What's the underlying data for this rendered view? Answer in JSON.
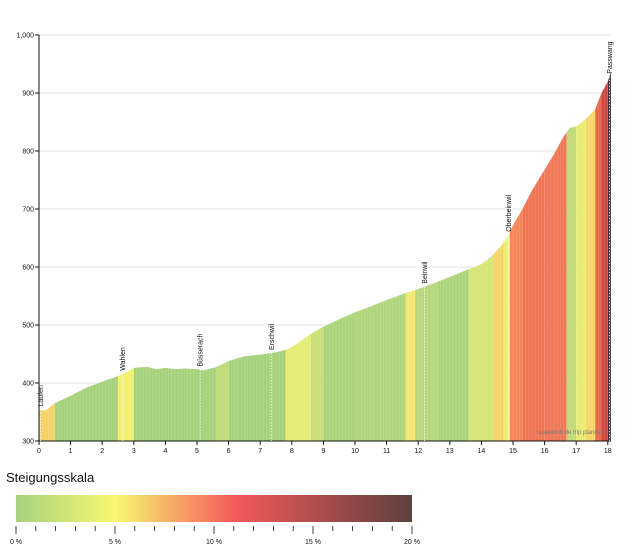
{
  "chart_data": {
    "type": "area",
    "title": "",
    "xlabel": "",
    "ylabel": "",
    "xlim": [
      0,
      18.1
    ],
    "ylim": [
      300,
      1000
    ],
    "x_ticks": [
      "0",
      "1",
      "2",
      "3",
      "4",
      "5",
      "6",
      "7",
      "8",
      "9",
      "10",
      "11",
      "12",
      "13",
      "14",
      "15",
      "16",
      "17",
      "18"
    ],
    "y_ticks": [
      "300",
      "400",
      "500",
      "600",
      "700",
      "800",
      "900",
      "1,000"
    ],
    "grid": true,
    "profile": [
      [
        0.0,
        355
      ],
      [
        0.2,
        352
      ],
      [
        0.5,
        365
      ],
      [
        1.0,
        378
      ],
      [
        1.5,
        392
      ],
      [
        2.0,
        402
      ],
      [
        2.5,
        412
      ],
      [
        2.8,
        420
      ],
      [
        3.0,
        426
      ],
      [
        3.4,
        428
      ],
      [
        3.7,
        424
      ],
      [
        4.0,
        426
      ],
      [
        4.3,
        424
      ],
      [
        4.6,
        425
      ],
      [
        5.0,
        424
      ],
      [
        5.2,
        422
      ],
      [
        5.6,
        427
      ],
      [
        6.0,
        438
      ],
      [
        6.5,
        446
      ],
      [
        7.0,
        449
      ],
      [
        7.5,
        453
      ],
      [
        7.8,
        457
      ],
      [
        8.0,
        462
      ],
      [
        8.3,
        473
      ],
      [
        8.6,
        485
      ],
      [
        9.0,
        497
      ],
      [
        9.5,
        510
      ],
      [
        10.0,
        522
      ],
      [
        10.5,
        532
      ],
      [
        11.0,
        543
      ],
      [
        11.5,
        553
      ],
      [
        12.0,
        562
      ],
      [
        12.5,
        572
      ],
      [
        13.0,
        583
      ],
      [
        13.5,
        594
      ],
      [
        14.0,
        605
      ],
      [
        14.3,
        617
      ],
      [
        14.6,
        635
      ],
      [
        14.8,
        650
      ],
      [
        15.0,
        672
      ],
      [
        15.3,
        700
      ],
      [
        15.6,
        732
      ],
      [
        16.0,
        768
      ],
      [
        16.3,
        795
      ],
      [
        16.6,
        825
      ],
      [
        16.8,
        840
      ],
      [
        17.0,
        842
      ],
      [
        17.3,
        855
      ],
      [
        17.6,
        872
      ],
      [
        17.8,
        900
      ],
      [
        18.0,
        920
      ],
      [
        18.1,
        936
      ]
    ],
    "gradient_segments": [
      [
        0.0,
        0.5,
        "#f3d268"
      ],
      [
        0.5,
        2.5,
        "#a6d27c"
      ],
      [
        2.5,
        3.0,
        "#f3f170"
      ],
      [
        3.0,
        5.6,
        "#a6d27c"
      ],
      [
        5.6,
        6.0,
        "#c0dc78"
      ],
      [
        6.0,
        7.8,
        "#a6d27c"
      ],
      [
        7.8,
        8.6,
        "#e4ec72"
      ],
      [
        8.6,
        9.0,
        "#c8e077"
      ],
      [
        9.0,
        10.0,
        "#acd57b"
      ],
      [
        10.0,
        11.6,
        "#b0d57b"
      ],
      [
        11.6,
        11.9,
        "#f0e872"
      ],
      [
        11.9,
        12.6,
        "#b7d87a"
      ],
      [
        12.6,
        13.6,
        "#acd57b"
      ],
      [
        13.6,
        14.4,
        "#d5e576"
      ],
      [
        14.4,
        14.7,
        "#f6d468"
      ],
      [
        14.7,
        14.9,
        "#f0f070"
      ],
      [
        14.9,
        15.3,
        "#f3875a"
      ],
      [
        15.3,
        16.0,
        "#f07555"
      ],
      [
        16.0,
        16.7,
        "#f07858"
      ],
      [
        16.7,
        17.0,
        "#c3da79"
      ],
      [
        17.0,
        17.3,
        "#e8ec72"
      ],
      [
        17.3,
        17.6,
        "#f6d868"
      ],
      [
        17.6,
        17.8,
        "#e8664c"
      ],
      [
        17.8,
        18.0,
        "#cc4a42"
      ],
      [
        18.0,
        18.1,
        "#3a2e2e"
      ]
    ],
    "places": [
      {
        "name": "Laufen",
        "km": 0.05
      },
      {
        "name": "Wahlen",
        "km": 2.65
      },
      {
        "name": "Büsserach",
        "km": 5.1
      },
      {
        "name": "Erschwil",
        "km": 7.35
      },
      {
        "name": "Beinwil",
        "km": 12.2
      },
      {
        "name": "Oberbeinwil",
        "km": 14.85
      },
      {
        "name": "Passwang",
        "km": 18.05
      }
    ],
    "credit": "quaeldich.de trip planner"
  },
  "legend": {
    "title": "Steigungsskala",
    "labels": [
      "0 %",
      "5 %",
      "10 %",
      "15 %",
      "20 %"
    ],
    "stops": [
      "#a6d27c",
      "#f8f872",
      "#f55a5a",
      "#5e3f3f"
    ]
  }
}
